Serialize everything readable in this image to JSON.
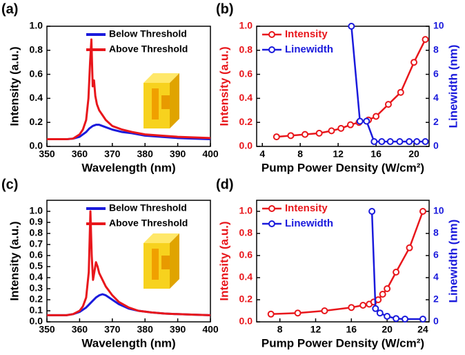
{
  "chart_data": [
    {
      "type": "line",
      "panel_label": "(a)",
      "xlabel": "Wavelength (nm)",
      "ylabel": "Intensity (a.u.)",
      "xlim": [
        350,
        400
      ],
      "xticks": [
        350,
        360,
        370,
        380,
        390,
        400
      ],
      "ylim": [
        0,
        1.0
      ],
      "yticks": [
        {
          "value": 0,
          "label": "0.0"
        },
        0.2,
        0.4,
        0.6,
        0.8,
        {
          "value": 1,
          "label": "1.0"
        }
      ],
      "legend": "upper right",
      "markers": false,
      "series": [
        {
          "name": "Below Threshold",
          "color": "#1a1adc",
          "x": [
            350,
            356,
            358,
            360,
            362,
            363,
            364,
            365,
            366,
            367,
            368,
            370,
            373,
            376,
            380,
            385,
            390,
            395,
            400
          ],
          "values": [
            0.06,
            0.06,
            0.065,
            0.08,
            0.12,
            0.15,
            0.17,
            0.18,
            0.18,
            0.17,
            0.16,
            0.14,
            0.12,
            0.11,
            0.09,
            0.08,
            0.07,
            0.065,
            0.06
          ]
        },
        {
          "name": "Above Threshold",
          "color": "#e8161b",
          "x": [
            350,
            356,
            358,
            360,
            361,
            362,
            362.7,
            363.2,
            363.6,
            364,
            364.4,
            364.8,
            365.3,
            366,
            367,
            368,
            370,
            373,
            376,
            380,
            385,
            390,
            395,
            400
          ],
          "values": [
            0.06,
            0.06,
            0.065,
            0.1,
            0.14,
            0.22,
            0.4,
            0.7,
            0.89,
            0.5,
            0.55,
            0.42,
            0.35,
            0.3,
            0.26,
            0.22,
            0.17,
            0.14,
            0.12,
            0.1,
            0.09,
            0.08,
            0.075,
            0.07
          ]
        }
      ]
    },
    {
      "type": "line",
      "panel_label": "(b)",
      "xlabel": "Pump Power Density (W/cm²)",
      "ylabel": "Intensity (a.u.)",
      "y2label": "Linewidth (nm)",
      "xlim": [
        3.4,
        21.6
      ],
      "xticks": [
        4,
        8,
        12,
        16,
        20
      ],
      "ylim": [
        0,
        1.0
      ],
      "yticks": [
        {
          "value": 0,
          "label": "0.0"
        },
        0.2,
        0.4,
        0.6,
        0.8,
        {
          "value": 1,
          "label": "1.0"
        }
      ],
      "y2lim": [
        0,
        10
      ],
      "y2ticks": [
        0,
        2,
        4,
        6,
        8,
        10
      ],
      "legend": "upper left",
      "markers": true,
      "series": [
        {
          "name": "Intensity",
          "color": "#e8161b",
          "x": [
            5.5,
            7,
            8.5,
            10,
            11.3,
            12.3,
            13.3,
            14.2,
            15.2,
            16,
            17.3,
            18.6,
            20,
            21.2
          ],
          "values": [
            0.08,
            0.09,
            0.1,
            0.11,
            0.13,
            0.15,
            0.18,
            0.2,
            0.22,
            0.25,
            0.35,
            0.45,
            0.7,
            0.89
          ]
        },
        {
          "name": "Linewidth",
          "color": "#1a1adc",
          "axis": "y2",
          "x": [
            13.4,
            14.3,
            15,
            15.8,
            16.6,
            17.5,
            18.5,
            19.5,
            20.3,
            21.2
          ],
          "values": [
            10,
            2.1,
            2.1,
            0.4,
            0.4,
            0.4,
            0.4,
            0.4,
            0.4,
            0.4
          ]
        }
      ]
    },
    {
      "type": "line",
      "panel_label": "(c)",
      "xlabel": "Wavelength (nm)",
      "ylabel": "Intensity (a.u.)",
      "xlim": [
        350,
        400
      ],
      "xticks": [
        350,
        360,
        370,
        380,
        390,
        400
      ],
      "ylim": [
        0,
        1.1
      ],
      "yticks": [
        {
          "value": 0,
          "label": "0.0"
        },
        0.1,
        0.2,
        0.3,
        0.4,
        0.5,
        0.6,
        0.7,
        0.8,
        0.9,
        {
          "value": 1,
          "label": "1.0"
        }
      ],
      "legend": "upper right",
      "markers": false,
      "series": [
        {
          "name": "Below Threshold",
          "color": "#1a1adc",
          "x": [
            350,
            356,
            358,
            360,
            362,
            364,
            365,
            366,
            367,
            368,
            369,
            370,
            372,
            375,
            378,
            382,
            386,
            390,
            395,
            400
          ],
          "values": [
            0.06,
            0.06,
            0.07,
            0.09,
            0.13,
            0.19,
            0.22,
            0.24,
            0.25,
            0.24,
            0.22,
            0.2,
            0.16,
            0.12,
            0.1,
            0.085,
            0.075,
            0.07,
            0.065,
            0.06
          ]
        },
        {
          "name": "Above Threshold",
          "color": "#e8161b",
          "x": [
            350,
            356,
            358,
            360,
            361,
            362,
            362.8,
            363.3,
            363.7,
            364.1,
            364.5,
            365,
            365.5,
            366,
            367,
            368,
            370,
            372,
            375,
            378,
            382,
            386,
            390,
            395,
            400
          ],
          "values": [
            0.06,
            0.06,
            0.07,
            0.1,
            0.14,
            0.22,
            0.45,
            1.0,
            0.6,
            0.38,
            0.45,
            0.54,
            0.5,
            0.44,
            0.38,
            0.32,
            0.24,
            0.18,
            0.13,
            0.1,
            0.085,
            0.075,
            0.07,
            0.065,
            0.06
          ]
        }
      ]
    },
    {
      "type": "line",
      "panel_label": "(d)",
      "xlabel": "Pump Power Density (W/cm²)",
      "ylabel": "Intensity (a.u.)",
      "y2label": "Linewidth (nm)",
      "xlim": [
        5.4,
        24.7
      ],
      "xticks": [
        8,
        12,
        16,
        20,
        24
      ],
      "ylim": [
        0,
        1.1
      ],
      "yticks": [
        {
          "value": 0,
          "label": "0.0"
        },
        0.2,
        0.4,
        0.6,
        0.8,
        {
          "value": 1,
          "label": "1.0"
        }
      ],
      "y2lim": [
        0,
        11
      ],
      "y2ticks": [
        0,
        2,
        4,
        6,
        8,
        10
      ],
      "legend": "upper left",
      "markers": true,
      "series": [
        {
          "name": "Intensity",
          "color": "#e8161b",
          "x": [
            7,
            10,
            13,
            16,
            17.3,
            18,
            18.5,
            19,
            19.5,
            20,
            21,
            22.5,
            24
          ],
          "values": [
            0.07,
            0.08,
            0.1,
            0.13,
            0.15,
            0.16,
            0.18,
            0.2,
            0.25,
            0.3,
            0.45,
            0.67,
            1.0
          ]
        },
        {
          "name": "Linewidth",
          "color": "#1a1adc",
          "axis": "y2",
          "x": [
            18.3,
            18.7,
            19.2,
            20,
            21,
            22,
            24
          ],
          "values": [
            10,
            1.2,
            0.8,
            0.5,
            0.3,
            0.25,
            0.25
          ]
        }
      ]
    }
  ]
}
